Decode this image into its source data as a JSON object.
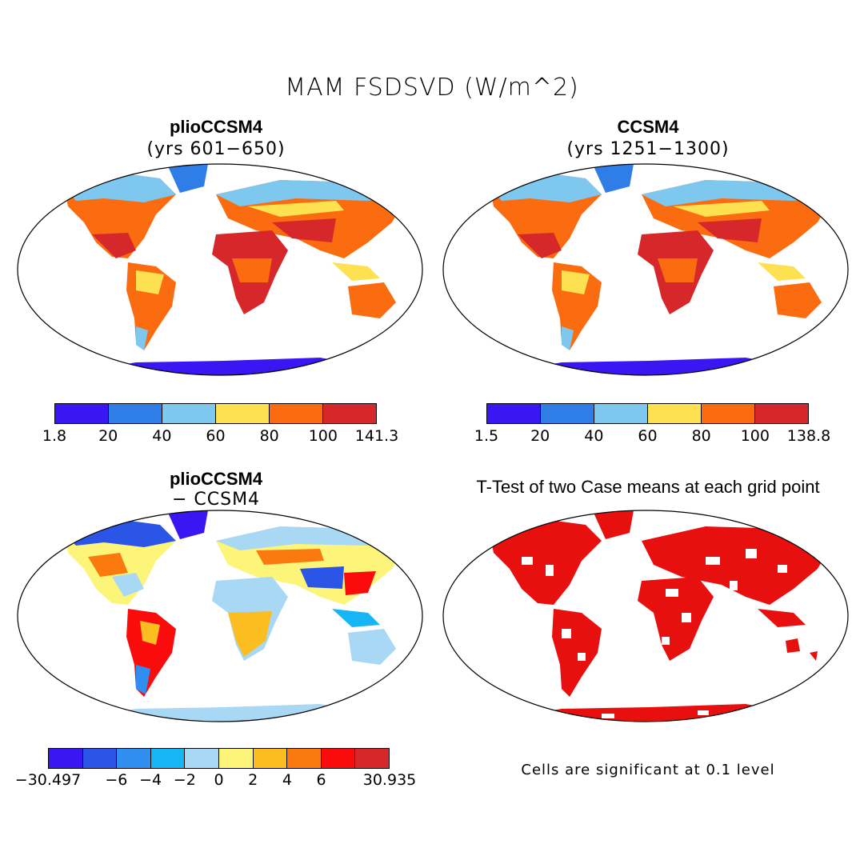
{
  "title": "MAM FSDSVD (W/m^2)",
  "panels": {
    "top_left": {
      "title": "plioCCSM4",
      "subtitle": "(yrs 601−650)"
    },
    "top_right": {
      "title": "CCSM4",
      "subtitle": "(yrs 1251−1300)"
    },
    "bottom_left": {
      "title": "plioCCSM4",
      "subtitle": "− CCSM4"
    },
    "bottom_right": {
      "title": "T-Test of two Case means at each grid point"
    }
  },
  "colorbars": {
    "top_left": {
      "labels": [
        "1.8",
        "20",
        "40",
        "60",
        "80",
        "100",
        "141.3"
      ],
      "colors": [
        "#3a16f2",
        "#2f7ee8",
        "#7ec8f0",
        "#fde150",
        "#fb6c10",
        "#d6282a"
      ]
    },
    "top_right": {
      "labels": [
        "1.5",
        "20",
        "40",
        "60",
        "80",
        "100",
        "138.8"
      ],
      "colors": [
        "#3a16f2",
        "#2f7ee8",
        "#7ec8f0",
        "#fde150",
        "#fb6c10",
        "#d6282a"
      ]
    },
    "bottom_left": {
      "labels": [
        "−30.497",
        "−6",
        "−4",
        "−2",
        "0",
        "2",
        "4",
        "6",
        "30.935"
      ],
      "label_positions": [
        0,
        2,
        3,
        4,
        5,
        6,
        7,
        8,
        10
      ],
      "colors": [
        "#3a16f2",
        "#2a55e6",
        "#2f8ef0",
        "#16b6f5",
        "#a8d8f3",
        "#fdf47a",
        "#fbbd1f",
        "#fb7a10",
        "#fb0c0c",
        "#d6282a"
      ]
    }
  },
  "note": "Cells are significant at 0.1 level",
  "map_colors": {
    "ocean": "#ffffff",
    "antarctica_abs": "#3a16f2",
    "antarctica_diff": "#a8d8f3",
    "significant": "#e8100f"
  }
}
